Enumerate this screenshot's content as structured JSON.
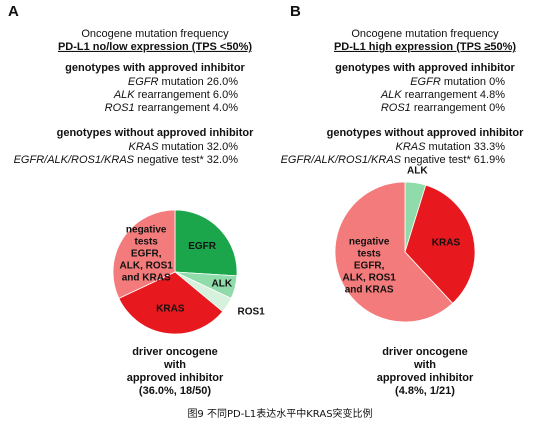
{
  "chart_data": [
    {
      "type": "pie",
      "panel": "A",
      "title": "Oncogene mutation frequency",
      "subtitle": "PD-L1 no/low expression (TPS <50%)",
      "group_titles": [
        "genotypes with approved inhibitor",
        "genotypes without approved inhibitor"
      ],
      "rows": [
        {
          "gene": "EGFR",
          "kind": "mutation"
        },
        {
          "gene": "ALK",
          "kind": "rearrangement"
        },
        {
          "gene": "ROS1",
          "kind": "rearrangement"
        },
        {
          "gene": "KRAS",
          "kind": "mutation"
        },
        {
          "gene": "EGFR/ALK/ROS1/KRAS",
          "kind": "negative test*"
        }
      ],
      "categories": [
        "EGFR",
        "ALK",
        "ROS1",
        "KRAS",
        [
          "negative",
          "tests",
          "EGFR,",
          "ALK, ROS1",
          "and KRAS"
        ]
      ],
      "values": [
        26.0,
        6.0,
        4.0,
        32.0,
        32.0
      ],
      "value_labels": [
        "26.0%",
        "6.0%",
        "4.0%",
        "32.0%",
        "32.0%"
      ],
      "colors": [
        "#1ba64c",
        "#8fdcaa",
        "#d6f1dc",
        "#e8191e",
        "#f47b7b"
      ],
      "footer": [
        "driver oncogene",
        "with",
        "approved inhibitor",
        "(36.0%, 18/50)"
      ]
    },
    {
      "type": "pie",
      "panel": "B",
      "title": "Oncogene mutation frequency",
      "subtitle": "PD-L1 high expression (TPS ≥50%)",
      "group_titles": [
        "genotypes with approved inhibitor",
        "genotypes without approved inhibitor"
      ],
      "rows": [
        {
          "gene": "EGFR",
          "kind": "mutation"
        },
        {
          "gene": "ALK",
          "kind": "rearrangement"
        },
        {
          "gene": "ROS1",
          "kind": "rearrangement"
        },
        {
          "gene": "KRAS",
          "kind": "mutation"
        },
        {
          "gene": "EGFR/ALK/ROS1/KRAS",
          "kind": "negative test*"
        }
      ],
      "categories": [
        null,
        "ALK",
        null,
        "KRAS",
        [
          "negative",
          "tests",
          "EGFR,",
          "ALK, ROS1",
          "and KRAS"
        ]
      ],
      "values": [
        0,
        4.8,
        0,
        33.3,
        61.9
      ],
      "value_labels": [
        "0%",
        "4.8%",
        "0%",
        "33.3%",
        "61.9%"
      ],
      "colors": [
        "#1ba64c",
        "#8fdcaa",
        "#d6f1dc",
        "#e8191e",
        "#f47b7b"
      ],
      "footer": [
        "driver oncogene",
        "with",
        "approved inhibitor",
        "(4.8%, 1/21)"
      ]
    }
  ],
  "caption": "图9 不同PD-L1表达水平中KRAS突变比例"
}
